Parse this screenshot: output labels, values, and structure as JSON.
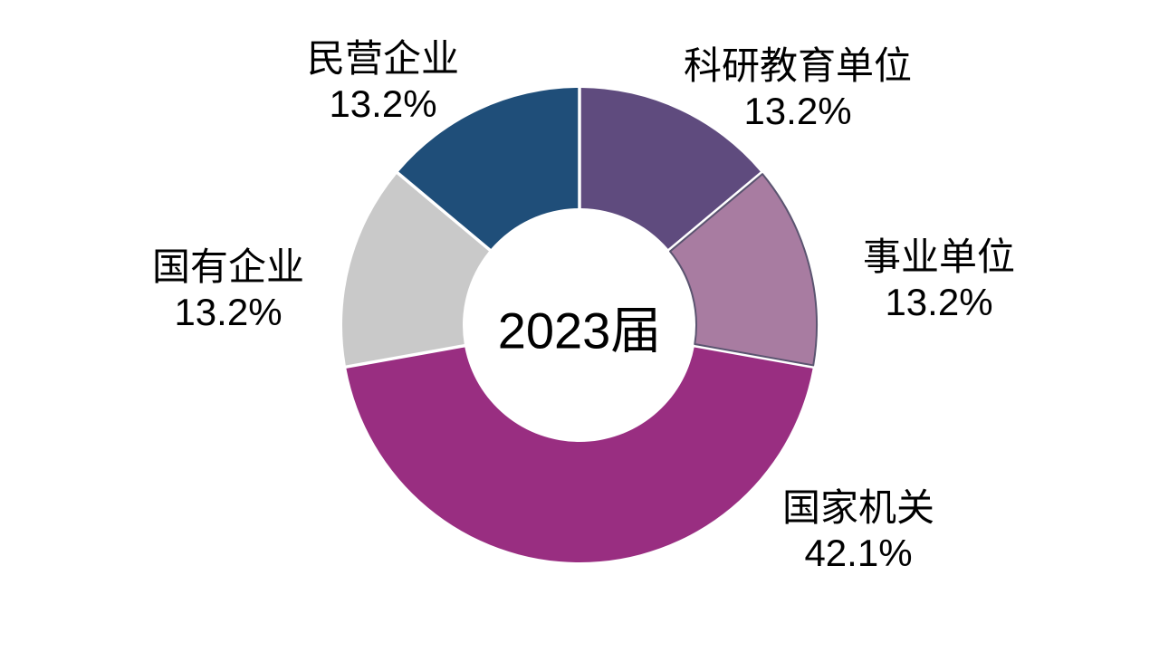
{
  "chart_data": {
    "type": "pie",
    "subtype": "donut",
    "center_label": "2023届",
    "direction": "clockwise",
    "start_angle_deg": 0,
    "donut_hole_ratio": 0.49,
    "legend": "none",
    "background_color": "#FFFFFF",
    "label_color": "#000000",
    "slices": [
      {
        "id": "keyan-jiaoyu-danwei",
        "label": "科研教育单位",
        "value": 13.2,
        "percent_label": "13.2%",
        "color": "#5F4B7E"
      },
      {
        "id": "shiye-danwei",
        "label": "事业单位",
        "value": 13.2,
        "percent_label": "13.2%",
        "color": "#A87CA1",
        "stroke": "#5B5470"
      },
      {
        "id": "guojia-jiguan",
        "label": "国家机关",
        "value": 42.1,
        "percent_label": "42.1%",
        "color": "#992E81"
      },
      {
        "id": "guoyou-qiye",
        "label": "国有企业",
        "value": 13.2,
        "percent_label": "13.2%",
        "color": "#C9C9C9"
      },
      {
        "id": "minying-qiye",
        "label": "民营企业",
        "value": 13.2,
        "percent_label": "13.2%",
        "color": "#1F4E79"
      }
    ]
  }
}
